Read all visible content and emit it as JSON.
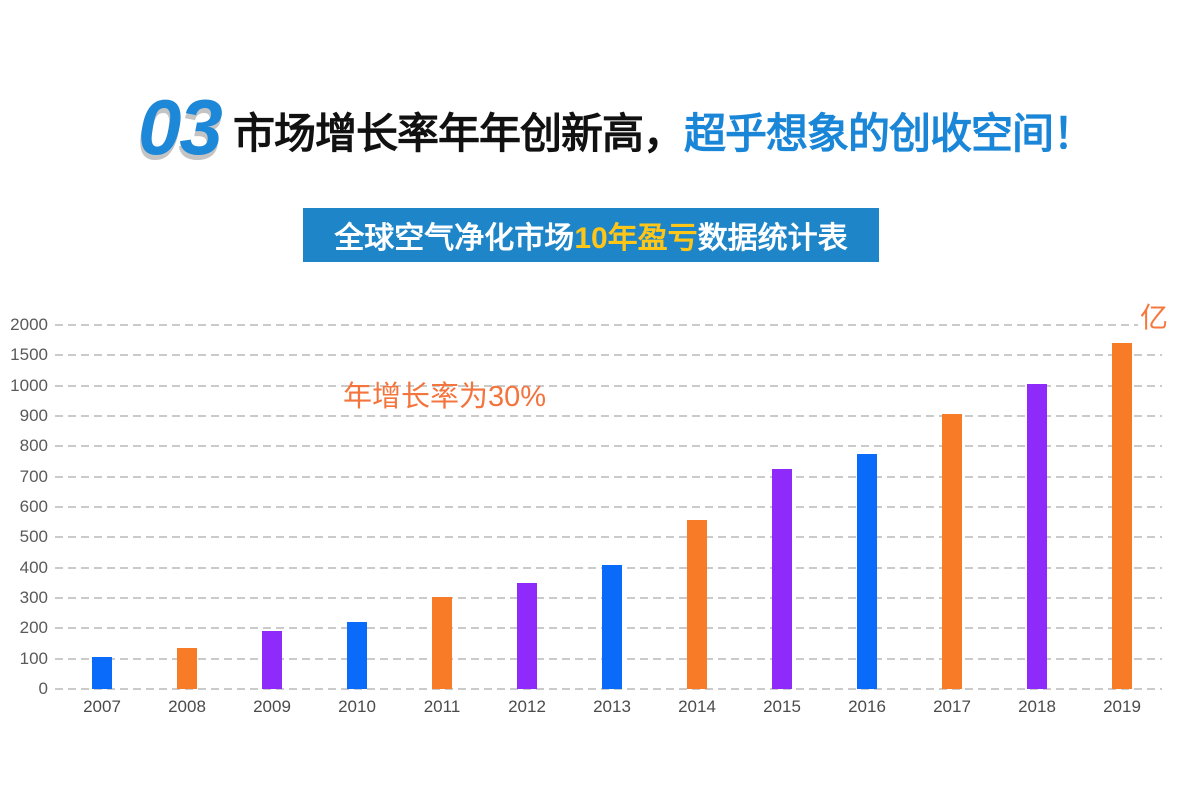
{
  "page": {
    "background": "#ffffff"
  },
  "header": {
    "number": "03",
    "number_color": "#1d87d8",
    "title_black": "市场增长率年年创新高，",
    "title_blue": "超乎想象的创收空间！",
    "title_blue_color": "#1a86d8"
  },
  "banner": {
    "text_before": "全球空气净化市场",
    "text_highlight": "10年盈亏",
    "text_after": "数据统计表",
    "background_color": "#1e86c8",
    "highlight_color": "#ffc617",
    "text_color": "#ffffff"
  },
  "chart_data": {
    "type": "bar",
    "title": "全球空气净化市场10年盈亏数据统计表",
    "unit": "亿",
    "annotation": "年增长率为30%",
    "annotation_color": "#f4743e",
    "unit_color": "#f5793e",
    "categories": [
      "2007",
      "2008",
      "2009",
      "2010",
      "2011",
      "2012",
      "2013",
      "2014",
      "2015",
      "2016",
      "2017",
      "2018",
      "2019"
    ],
    "values": [
      105,
      135,
      192,
      220,
      302,
      348,
      408,
      557,
      725,
      775,
      905,
      1030,
      1705
    ],
    "bar_colors": [
      "#0a6bfa",
      "#f87c28",
      "#8f2bfa",
      "#0a6bfa",
      "#f87c28",
      "#8f2bfa",
      "#0a6bfa",
      "#f87c28",
      "#8f2bfa",
      "#0a6bfa",
      "#f87c28",
      "#8f2bfa",
      "#f87c28"
    ],
    "y_axis": {
      "ticks": [
        0,
        100,
        200,
        300,
        400,
        500,
        600,
        700,
        800,
        900,
        1000,
        1500,
        2000
      ],
      "scale_note": "non-linear axis: equal pixel spacing per tick; 100-unit steps up to 1000 then 500-unit steps to 2000"
    },
    "xlabel": "",
    "ylabel": "",
    "grid": true,
    "legend": false
  }
}
